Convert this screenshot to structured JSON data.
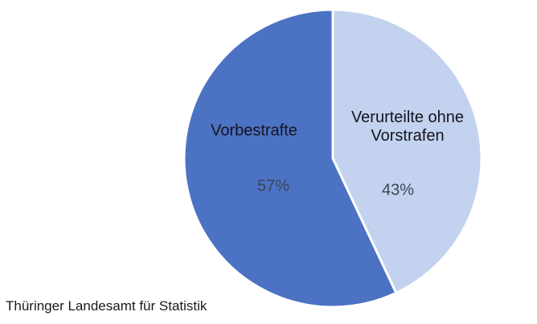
{
  "chart_data": {
    "type": "pie",
    "title": "",
    "categories": [
      "Verurteilte ohne Vorstrafen",
      "Vorbestrafte"
    ],
    "values": [
      43,
      57
    ],
    "slices": [
      {
        "label": "Verurteilte ohne Vorstrafen",
        "value": 43,
        "percent_label": "43%",
        "color": "#c3d2ee"
      },
      {
        "label": "Vorbestrafte",
        "value": 57,
        "percent_label": "57%",
        "color": "#4c72c4"
      }
    ],
    "start_angle_deg": 0,
    "direction": "clockwise",
    "legend_position": "none",
    "labels_inside": true
  },
  "source_caption": "Thüringer Landesamt für Statistik",
  "colors": {
    "background": "#ffffff",
    "slice_border": "#ffffff",
    "category_label": "#14141f",
    "percent_label": "#3b4656",
    "caption": "#1a1a1a"
  }
}
